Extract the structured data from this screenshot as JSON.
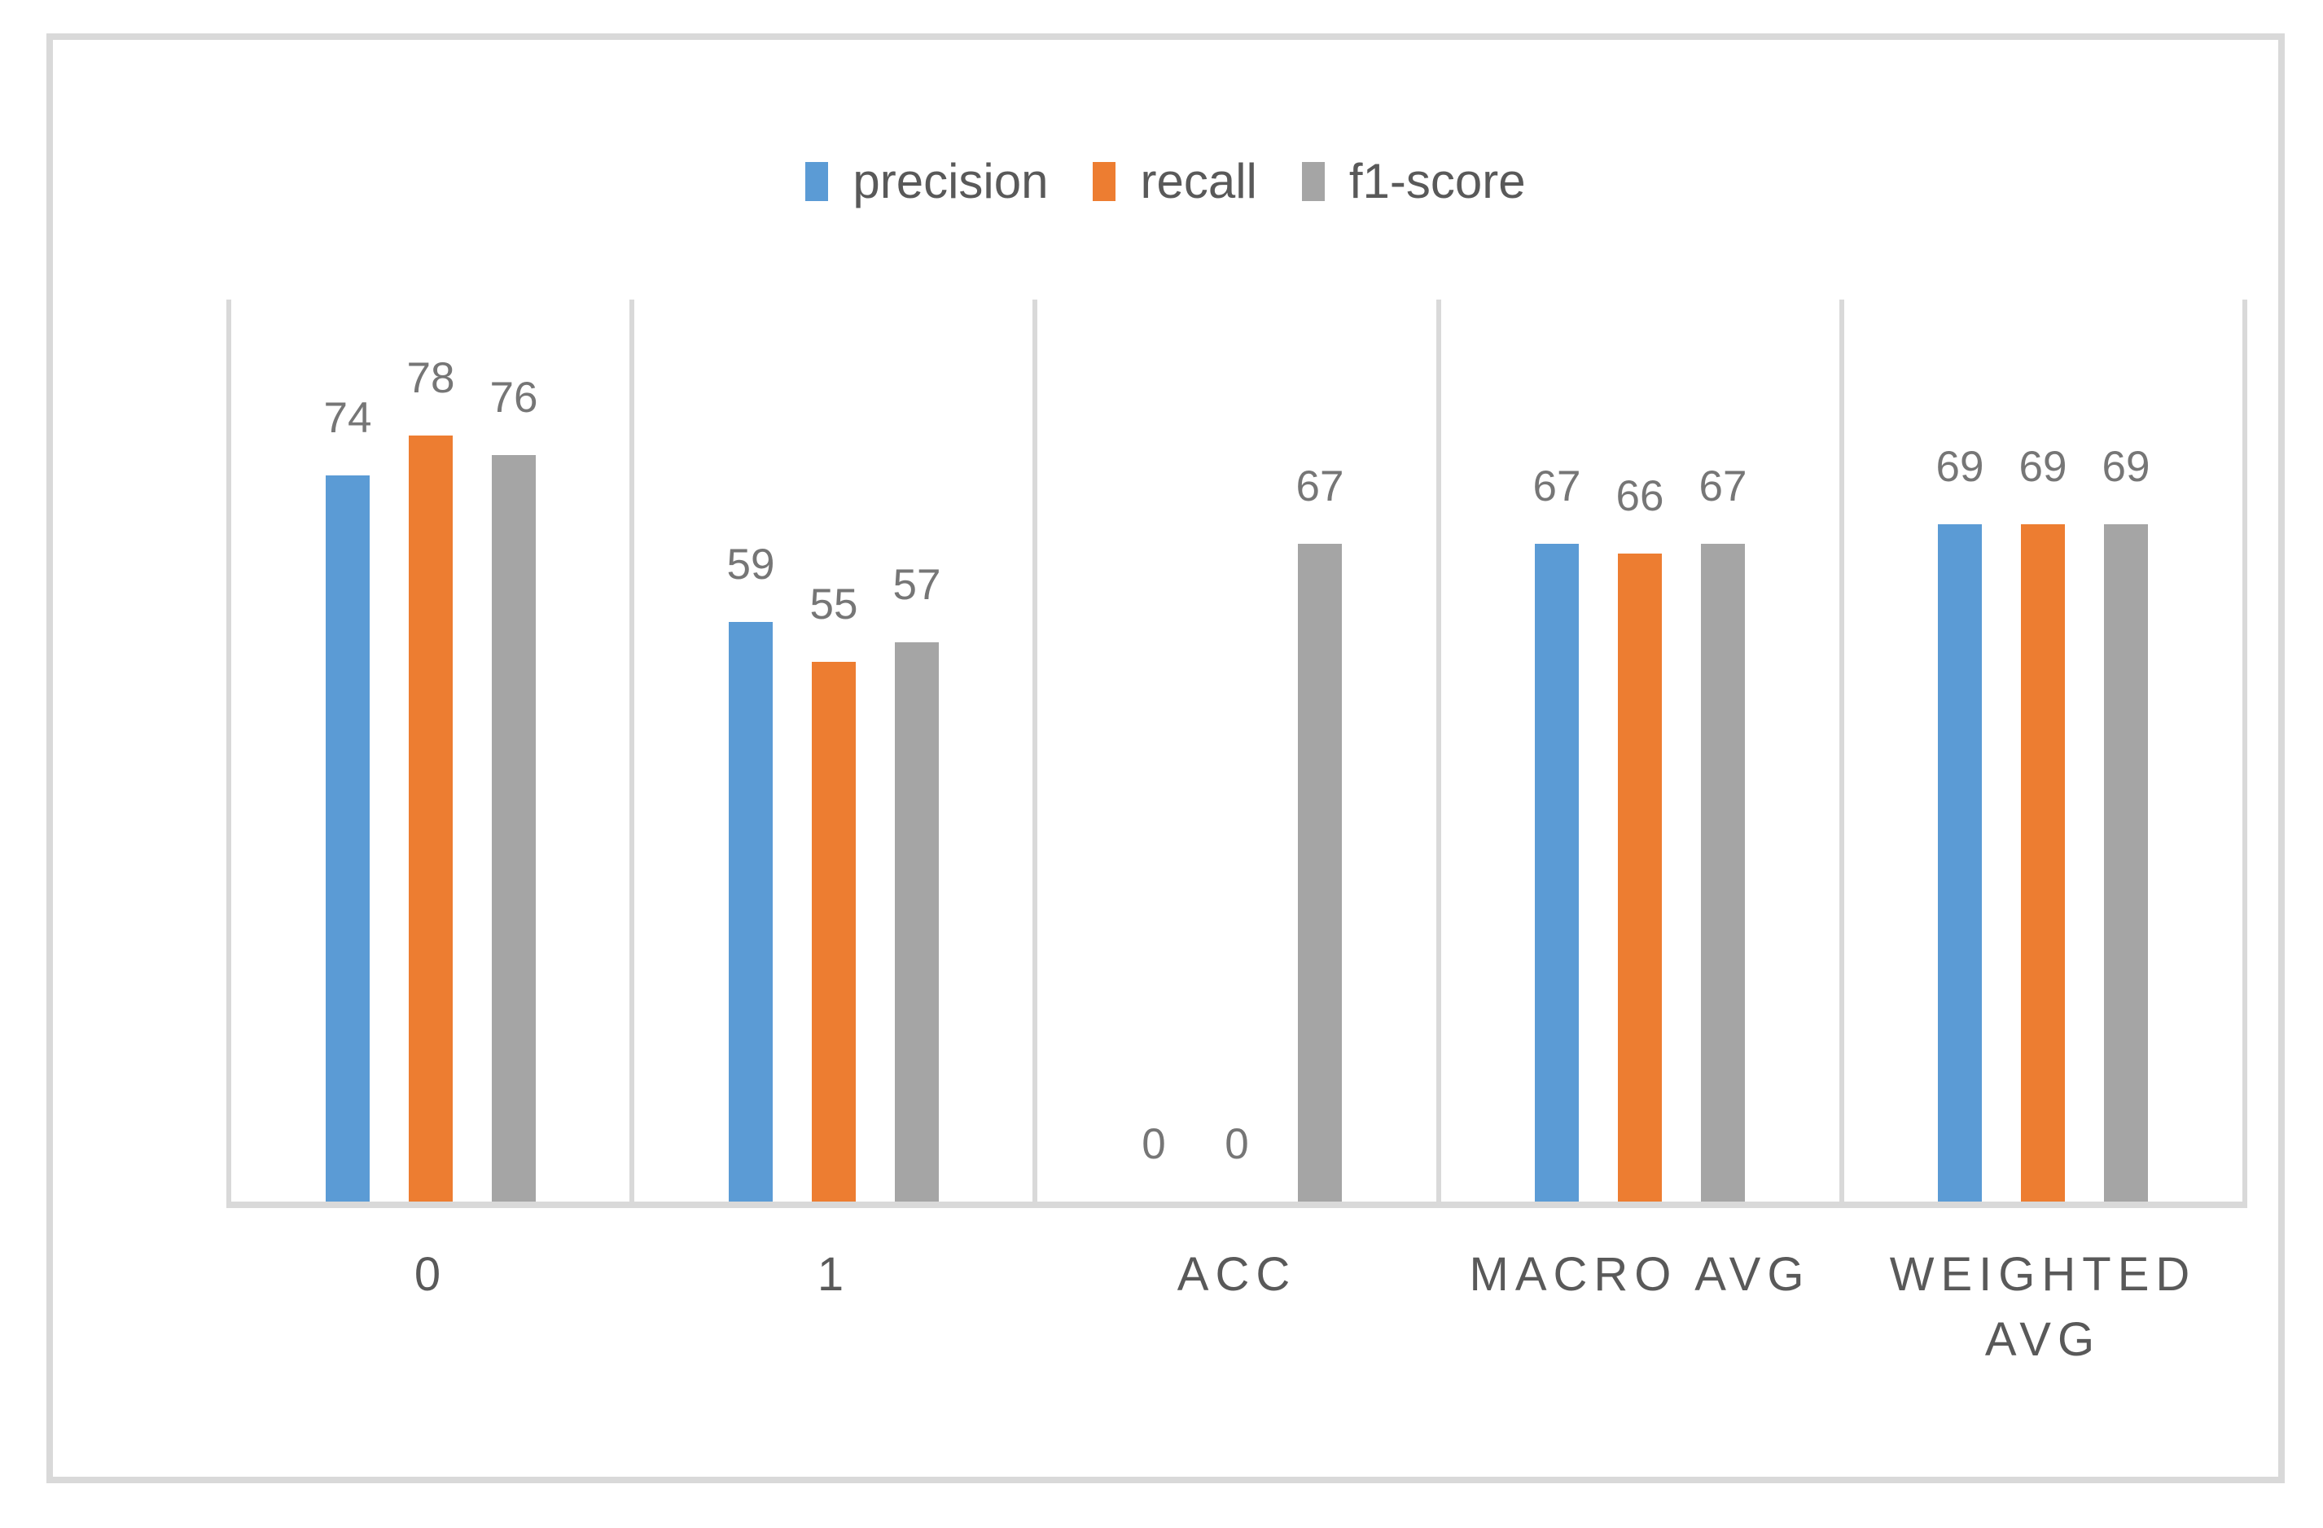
{
  "chart_data": {
    "type": "bar",
    "title": "",
    "xlabel": "",
    "ylabel": "",
    "categories": [
      "0",
      "1",
      "ACC",
      "MACRO AVG",
      "WEIGHTED AVG"
    ],
    "series": [
      {
        "name": "precision",
        "color": "#5B9BD5",
        "values": [
          74,
          59,
          0,
          67,
          69
        ]
      },
      {
        "name": "recall",
        "color": "#ED7D31",
        "values": [
          78,
          55,
          0,
          66,
          69
        ]
      },
      {
        "name": "f1-score",
        "color": "#A5A5A5",
        "values": [
          76,
          57,
          67,
          67,
          69
        ]
      }
    ],
    "ylim": [
      0,
      90
    ],
    "grid": "vertical category separators only",
    "legend_position": "top-center",
    "data_labels": "outside-end"
  },
  "colors": {
    "frame_border": "#D9D9D9",
    "gridline": "#D9D9D9",
    "axis_line": "#D9D9D9",
    "data_label_text": "#767676",
    "axis_label_text": "#595959",
    "legend_text": "#595959",
    "background": "#FFFFFF"
  }
}
